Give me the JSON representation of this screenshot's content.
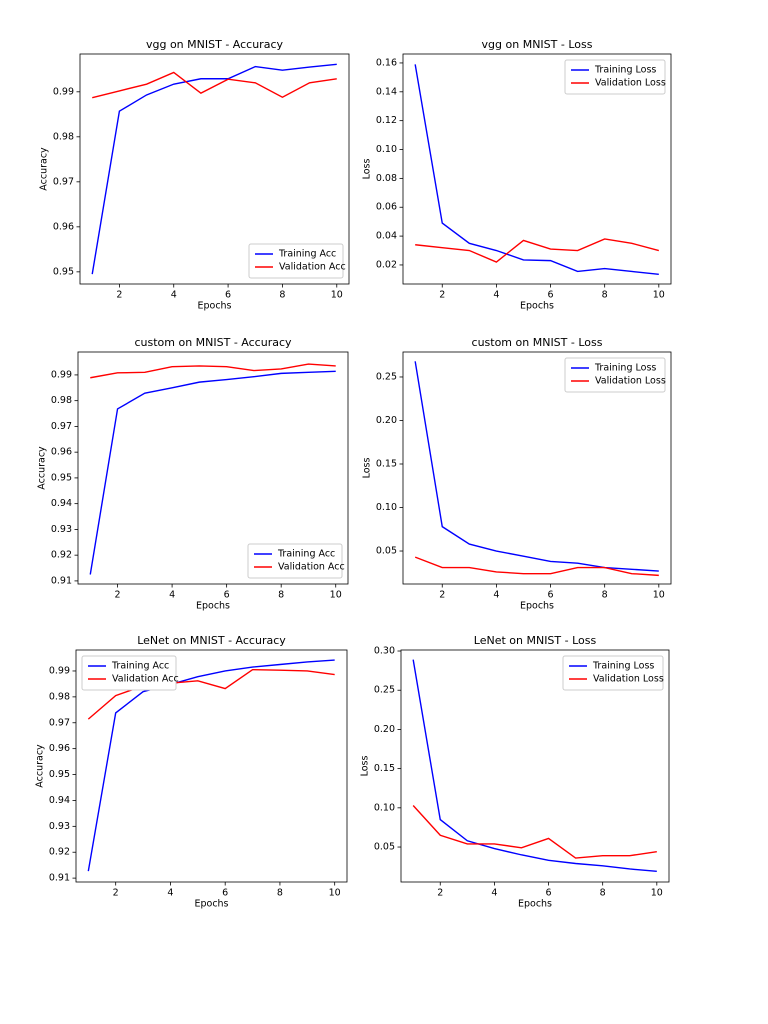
{
  "chart_data": [
    {
      "type": "line",
      "title": "vgg on MNIST - Accuracy",
      "xlabel": "Epochs",
      "ylabel": "Accuracy",
      "legend": "lower right",
      "x": [
        1,
        2,
        3,
        4,
        5,
        6,
        7,
        8,
        9,
        10
      ],
      "xlim": [
        0.55,
        10.45
      ],
      "xticks": [
        2,
        4,
        6,
        8,
        10
      ],
      "ylim": [
        0.9473,
        0.9984
      ],
      "yticks": [
        0.95,
        0.96,
        0.97,
        0.98,
        0.99
      ],
      "series": [
        {
          "name": "Training Acc",
          "color": "#0000ff",
          "values": [
            0.9495,
            0.9857,
            0.9893,
            0.9917,
            0.9929,
            0.9929,
            0.9956,
            0.9948,
            0.9955,
            0.9961
          ]
        },
        {
          "name": "Validation Acc",
          "color": "#ff0000",
          "values": [
            0.9887,
            0.9902,
            0.9917,
            0.9943,
            0.9897,
            0.9928,
            0.992,
            0.9888,
            0.992,
            0.9929
          ]
        }
      ]
    },
    {
      "type": "line",
      "title": "vgg on MNIST - Loss",
      "xlabel": "Epochs",
      "ylabel": "Loss",
      "legend": "upper right",
      "x": [
        1,
        2,
        3,
        4,
        5,
        6,
        7,
        8,
        9,
        10
      ],
      "xlim": [
        0.55,
        10.45
      ],
      "xticks": [
        2,
        4,
        6,
        8,
        10
      ],
      "ylim": [
        0.0068,
        0.1662
      ],
      "yticks": [
        0.02,
        0.04,
        0.06,
        0.08,
        {
          "value": 0.1,
          "label": "0.10"
        },
        0.12,
        0.14,
        0.16
      ],
      "series": [
        {
          "name": "Training Loss",
          "color": "#0000ff",
          "values": [
            0.159,
            0.049,
            0.035,
            0.03,
            0.0235,
            0.023,
            0.0155,
            0.0175,
            0.0155,
            0.0135
          ]
        },
        {
          "name": "Validation Loss",
          "color": "#ff0000",
          "values": [
            0.034,
            0.032,
            0.03,
            0.022,
            0.037,
            0.031,
            0.03,
            0.038,
            0.035,
            0.03
          ]
        }
      ]
    },
    {
      "type": "line",
      "title": "custom on MNIST - Accuracy",
      "xlabel": "Epochs",
      "ylabel": "Accuracy",
      "legend": "lower right",
      "x": [
        1,
        2,
        3,
        4,
        5,
        6,
        7,
        8,
        9,
        10
      ],
      "xlim": [
        0.55,
        10.45
      ],
      "xticks": [
        2,
        4,
        6,
        8,
        10
      ],
      "ylim": [
        0.9088,
        0.9989
      ],
      "yticks": [
        0.91,
        0.92,
        0.93,
        0.94,
        0.95,
        0.96,
        0.97,
        0.98,
        0.99
      ],
      "series": [
        {
          "name": "Training Acc",
          "color": "#0000ff",
          "values": [
            0.9125,
            0.9768,
            0.9829,
            0.985,
            0.9872,
            0.9882,
            0.9893,
            0.9906,
            0.991,
            0.9914
          ]
        },
        {
          "name": "Validation Acc",
          "color": "#ff0000",
          "values": [
            0.9889,
            0.9908,
            0.991,
            0.9932,
            0.9935,
            0.9932,
            0.9917,
            0.9923,
            0.9942,
            0.9935
          ]
        }
      ]
    },
    {
      "type": "line",
      "title": "custom on MNIST - Loss",
      "xlabel": "Epochs",
      "ylabel": "Loss",
      "legend": "upper right",
      "x": [
        1,
        2,
        3,
        4,
        5,
        6,
        7,
        8,
        9,
        10
      ],
      "xlim": [
        0.55,
        10.45
      ],
      "xticks": [
        2,
        4,
        6,
        8,
        10
      ],
      "ylim": [
        0.0121,
        0.2787
      ],
      "yticks": [
        0.05,
        {
          "value": 0.1,
          "label": "0.10"
        },
        0.15,
        {
          "value": 0.2,
          "label": "0.20"
        },
        0.25
      ],
      "series": [
        {
          "name": "Training Loss",
          "color": "#0000ff",
          "values": [
            0.268,
            0.078,
            0.058,
            0.05,
            0.044,
            0.038,
            0.036,
            0.031,
            0.029,
            0.027
          ]
        },
        {
          "name": "Validation Loss",
          "color": "#ff0000",
          "values": [
            0.043,
            0.031,
            0.031,
            0.026,
            0.024,
            0.024,
            0.031,
            0.031,
            0.024,
            0.022
          ]
        }
      ]
    },
    {
      "type": "line",
      "title": "LeNet on MNIST - Accuracy",
      "xlabel": "Epochs",
      "ylabel": "Accuracy",
      "legend": "upper left",
      "x": [
        1,
        2,
        3,
        4,
        5,
        6,
        7,
        8,
        9,
        10
      ],
      "xlim": [
        0.55,
        10.45
      ],
      "xticks": [
        2,
        4,
        6,
        8,
        10
      ],
      "ylim": [
        0.9085,
        0.9981
      ],
      "yticks": [
        0.91,
        0.92,
        0.93,
        0.94,
        0.95,
        0.96,
        0.97,
        0.98,
        0.99
      ],
      "series": [
        {
          "name": "Training Acc",
          "color": "#0000ff",
          "values": [
            0.9127,
            0.9738,
            0.982,
            0.9848,
            0.9878,
            0.99,
            0.9915,
            0.9925,
            0.9935,
            0.9942
          ]
        },
        {
          "name": "Validation Acc",
          "color": "#ff0000",
          "values": [
            0.9714,
            0.9805,
            0.9842,
            0.9853,
            0.9862,
            0.9832,
            0.9905,
            0.9903,
            0.99,
            0.9886
          ]
        }
      ]
    },
    {
      "type": "line",
      "title": "LeNet on MNIST - Loss",
      "xlabel": "Epochs",
      "ylabel": "Loss",
      "legend": "upper right",
      "x": [
        1,
        2,
        3,
        4,
        5,
        6,
        7,
        8,
        9,
        10
      ],
      "xlim": [
        0.55,
        10.45
      ],
      "xticks": [
        2,
        4,
        6,
        8,
        10
      ],
      "ylim": [
        0.0054,
        0.3013
      ],
      "yticks": [
        0.05,
        {
          "value": 0.1,
          "label": "0.10"
        },
        0.15,
        {
          "value": 0.2,
          "label": "0.20"
        },
        0.25,
        {
          "value": 0.3,
          "label": "0.30"
        }
      ],
      "series": [
        {
          "name": "Training Loss",
          "color": "#0000ff",
          "values": [
            0.289,
            0.085,
            0.058,
            0.048,
            0.04,
            0.033,
            0.029,
            0.026,
            0.022,
            0.019
          ]
        },
        {
          "name": "Validation Loss",
          "color": "#ff0000",
          "values": [
            0.103,
            0.065,
            0.054,
            0.054,
            0.049,
            0.061,
            0.036,
            0.039,
            0.039,
            0.044
          ]
        }
      ]
    }
  ]
}
